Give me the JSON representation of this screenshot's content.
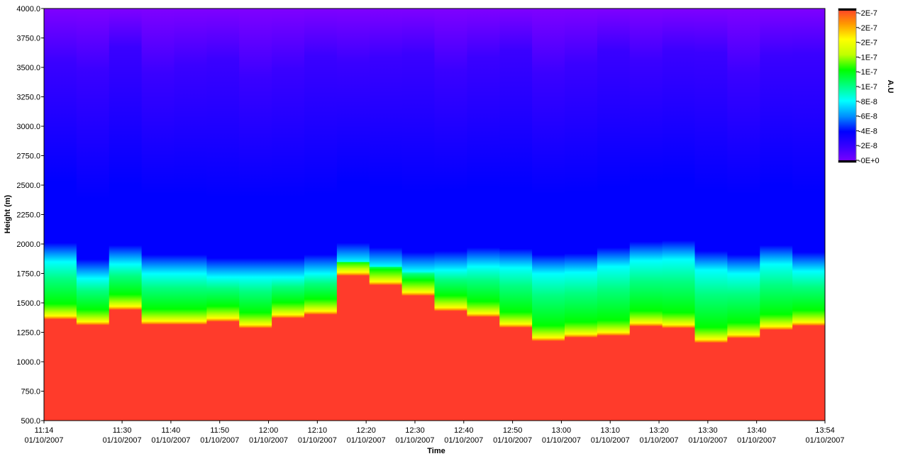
{
  "chart_data": {
    "type": "heatmap",
    "title": "",
    "xlabel": "Time",
    "ylabel": "Height (m)",
    "colorbar_label": "A.U",
    "ylim": [
      500,
      4000
    ],
    "y_ticks": [
      "500.0",
      "750.0",
      "1000.0",
      "1250.0",
      "1500.0",
      "1750.0",
      "2000.0",
      "2250.0",
      "2500.0",
      "2750.0",
      "3000.0",
      "3250.0",
      "3500.0",
      "3750.0",
      "4000.0"
    ],
    "x_range_minutes": [
      674,
      834
    ],
    "x_ticks": [
      {
        "minute": 674,
        "time": "11:14",
        "date": "01/10/2007"
      },
      {
        "minute": 690,
        "time": "11:30",
        "date": "01/10/2007"
      },
      {
        "minute": 700,
        "time": "11:40",
        "date": "01/10/2007"
      },
      {
        "minute": 710,
        "time": "11:50",
        "date": "01/10/2007"
      },
      {
        "minute": 720,
        "time": "12:00",
        "date": "01/10/2007"
      },
      {
        "minute": 730,
        "time": "12:10",
        "date": "01/10/2007"
      },
      {
        "minute": 740,
        "time": "12:20",
        "date": "01/10/2007"
      },
      {
        "minute": 750,
        "time": "12:30",
        "date": "01/10/2007"
      },
      {
        "minute": 760,
        "time": "12:40",
        "date": "01/10/2007"
      },
      {
        "minute": 770,
        "time": "12:50",
        "date": "01/10/2007"
      },
      {
        "minute": 780,
        "time": "13:00",
        "date": "01/10/2007"
      },
      {
        "minute": 790,
        "time": "13:10",
        "date": "01/10/2007"
      },
      {
        "minute": 800,
        "time": "13:20",
        "date": "01/10/2007"
      },
      {
        "minute": 810,
        "time": "13:30",
        "date": "01/10/2007"
      },
      {
        "minute": 820,
        "time": "13:40",
        "date": "01/10/2007"
      },
      {
        "minute": 834,
        "time": "13:54",
        "date": "01/10/2007"
      }
    ],
    "colorbar_ticks": [
      "2E-7",
      "2E-7",
      "2E-7",
      "1E-7",
      "1E-7",
      "1E-7",
      "8E-8",
      "6E-8",
      "4E-8",
      "2E-8",
      "0E+0"
    ],
    "colorscale": [
      "#7f00ff",
      "#3a00ff",
      "#0000ff",
      "#0090ff",
      "#00ffff",
      "#00ff80",
      "#00ff00",
      "#c0ff00",
      "#ffff00",
      "#ff9900",
      "#ff3b2b"
    ],
    "columns": [
      {
        "boundary_height": 1360,
        "transition_top": 1980
      },
      {
        "boundary_height": 1310,
        "transition_top": 1840
      },
      {
        "boundary_height": 1440,
        "transition_top": 1960
      },
      {
        "boundary_height": 1315,
        "transition_top": 1880
      },
      {
        "boundary_height": 1315,
        "transition_top": 1880
      },
      {
        "boundary_height": 1340,
        "transition_top": 1850
      },
      {
        "boundary_height": 1285,
        "transition_top": 1850
      },
      {
        "boundary_height": 1370,
        "transition_top": 1850
      },
      {
        "boundary_height": 1400,
        "transition_top": 1880
      },
      {
        "boundary_height": 1730,
        "transition_top": 1980
      },
      {
        "boundary_height": 1650,
        "transition_top": 1940
      },
      {
        "boundary_height": 1560,
        "transition_top": 1900
      },
      {
        "boundary_height": 1430,
        "transition_top": 1910
      },
      {
        "boundary_height": 1380,
        "transition_top": 1940
      },
      {
        "boundary_height": 1290,
        "transition_top": 1930
      },
      {
        "boundary_height": 1175,
        "transition_top": 1880
      },
      {
        "boundary_height": 1205,
        "transition_top": 1890
      },
      {
        "boundary_height": 1220,
        "transition_top": 1940
      },
      {
        "boundary_height": 1300,
        "transition_top": 1990
      },
      {
        "boundary_height": 1285,
        "transition_top": 2000
      },
      {
        "boundary_height": 1160,
        "transition_top": 1910
      },
      {
        "boundary_height": 1200,
        "transition_top": 1880
      },
      {
        "boundary_height": 1270,
        "transition_top": 1960
      },
      {
        "boundary_height": 1305,
        "transition_top": 1900
      }
    ]
  }
}
